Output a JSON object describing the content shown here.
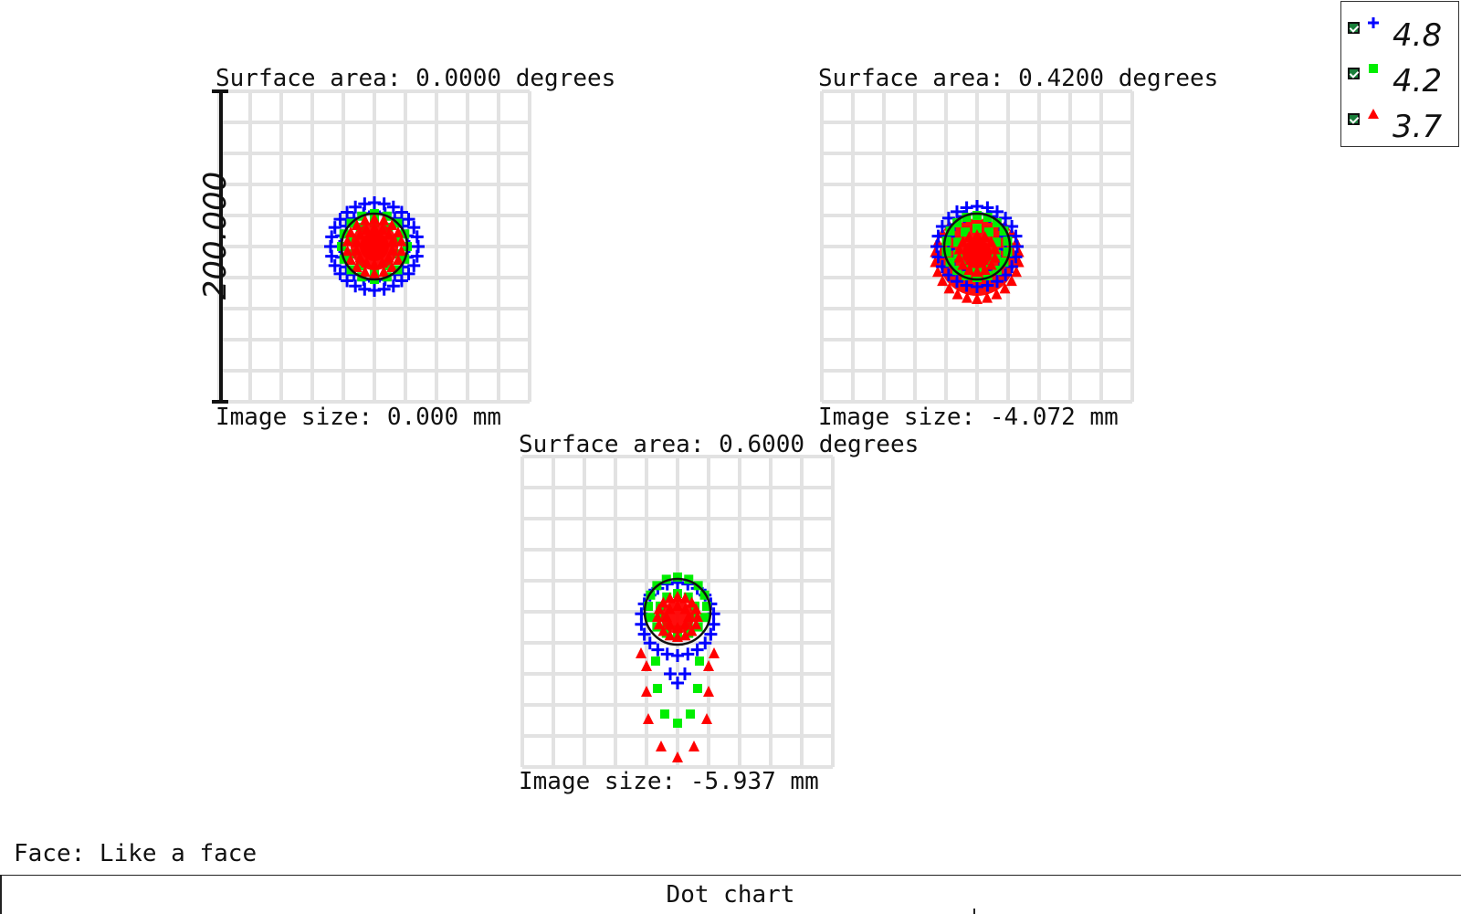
{
  "chart_data": {
    "type": "scatter",
    "title": "Dot chart",
    "scale_label": "200.000",
    "legend": [
      {
        "label": "4.8",
        "marker": "plus",
        "color": "#0000ff"
      },
      {
        "label": "4.2",
        "marker": "square",
        "color": "#00ee00"
      },
      {
        "label": "3.7",
        "marker": "triangle",
        "color": "#ff0000"
      }
    ],
    "grid": true,
    "panels": [
      {
        "title": "Surface area: 0.0000 degrees",
        "footer": "Image size: 0.000 mm",
        "airy_radius": 36,
        "clusters": [
          {
            "series": "4.8",
            "rings": [
              {
                "cx": 0,
                "cy": 0,
                "r": 48,
                "n": 28
              },
              {
                "cx": 0,
                "cy": 0,
                "r": 38,
                "n": 20
              }
            ]
          },
          {
            "series": "4.2",
            "rings": [
              {
                "cx": 0,
                "cy": 0,
                "r": 36,
                "n": 16
              },
              {
                "cx": 0,
                "cy": 0,
                "r": 26,
                "n": 10
              }
            ]
          },
          {
            "series": "3.7",
            "rings": [
              {
                "cx": 0,
                "cy": 0,
                "r": 30,
                "n": 18
              },
              {
                "cx": 0,
                "cy": 0,
                "r": 20,
                "n": 14
              },
              {
                "cx": 0,
                "cy": 0,
                "r": 8,
                "n": 3
              }
            ]
          }
        ]
      },
      {
        "title": "Surface area: 0.4200 degrees",
        "footer": "Image size: -4.072 mm",
        "airy_radius": 36,
        "clusters": [
          {
            "series": "3.7",
            "rings": [
              {
                "cx": 0,
                "cy": 12,
                "r": 46,
                "n": 26
              }
            ]
          },
          {
            "series": "4.8",
            "rings": [
              {
                "cx": 0,
                "cy": 0,
                "r": 44,
                "n": 24
              },
              {
                "cx": 0,
                "cy": -4,
                "r": 32,
                "n": 14
              }
            ]
          },
          {
            "series": "4.2",
            "rings": [
              {
                "cx": 0,
                "cy": 0,
                "r": 34,
                "n": 18
              },
              {
                "cx": 0,
                "cy": 2,
                "r": 22,
                "n": 10
              }
            ]
          },
          {
            "series": "3.7",
            "rings": [
              {
                "cx": 0,
                "cy": 8,
                "r": 20,
                "n": 14
              },
              {
                "cx": 0,
                "cy": 8,
                "r": 10,
                "n": 8
              }
            ]
          }
        ]
      },
      {
        "title": "Surface area: 0.6000 degrees",
        "footer": "Image size: -5.937 mm",
        "airy_radius": 36,
        "clusters": [
          {
            "series": "4.8",
            "rings": [
              {
                "cx": 0,
                "cy": 8,
                "r": 40,
                "n": 22
              }
            ]
          },
          {
            "series": "4.2",
            "rings": [
              {
                "cx": 0,
                "cy": -6,
                "r": 32,
                "n": 16
              },
              {
                "cx": 0,
                "cy": 0,
                "r": 20,
                "n": 10
              }
            ]
          },
          {
            "series": "3.7",
            "rings": [
              {
                "cx": 0,
                "cy": 6,
                "r": 22,
                "n": 16
              },
              {
                "cx": 0,
                "cy": 6,
                "r": 12,
                "n": 8
              }
            ]
          }
        ],
        "tail": {
          "4.8": [
            [
              -8,
              68
            ],
            [
              8,
              68
            ],
            [
              0,
              78
            ]
          ],
          "4.2": [
            [
              -24,
              54
            ],
            [
              24,
              54
            ],
            [
              -22,
              84
            ],
            [
              22,
              84
            ],
            [
              -14,
              112
            ],
            [
              14,
              112
            ],
            [
              0,
              122
            ]
          ],
          "3.7": [
            [
              -40,
              46
            ],
            [
              40,
              46
            ],
            [
              -34,
              60
            ],
            [
              34,
              60
            ],
            [
              -34,
              88
            ],
            [
              34,
              88
            ],
            [
              -32,
              118
            ],
            [
              32,
              118
            ],
            [
              -18,
              148
            ],
            [
              18,
              148
            ],
            [
              0,
              160
            ]
          ]
        }
      }
    ]
  },
  "footer": {
    "field_label": "Face: Like a face"
  },
  "tabs": [
    {
      "label": "Dot chart"
    }
  ]
}
